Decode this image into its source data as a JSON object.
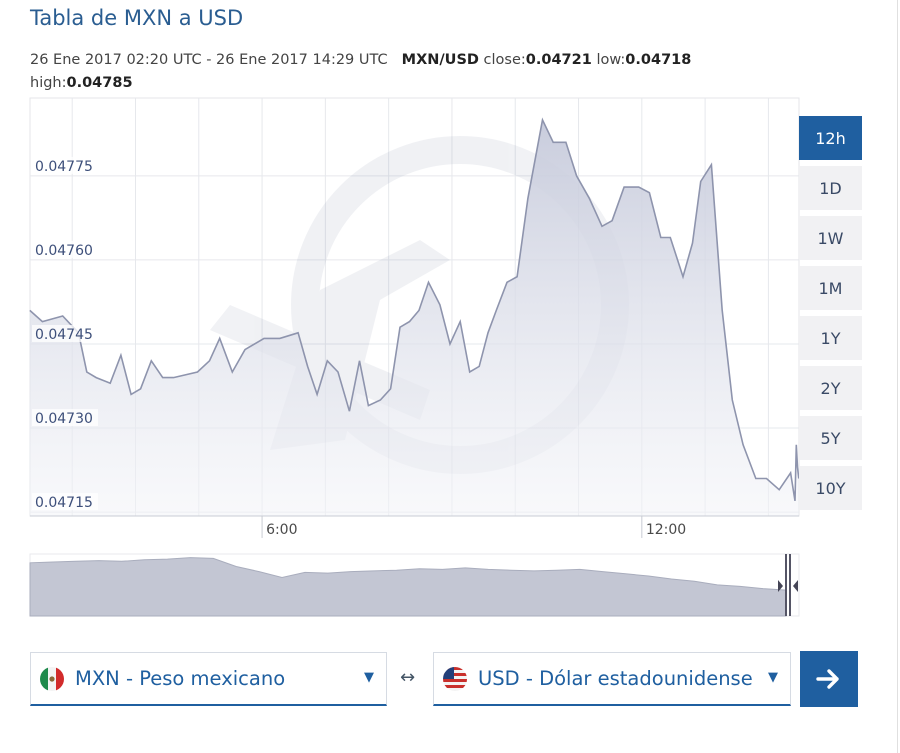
{
  "header": {
    "title": "Tabla de MXN a USD"
  },
  "info": {
    "time_range": "26 Ene 2017 02:20 UTC - 26 Ene 2017 14:29 UTC",
    "pair": "MXN/USD",
    "close_label": "close:",
    "close_value": "0.04721",
    "low_label": "low:",
    "low_value": "0.04718",
    "high_label": "high:",
    "high_value": "0.04785"
  },
  "range_buttons": [
    {
      "label": "12h",
      "active": true
    },
    {
      "label": "1D",
      "active": false
    },
    {
      "label": "1W",
      "active": false
    },
    {
      "label": "1M",
      "active": false
    },
    {
      "label": "1Y",
      "active": false
    },
    {
      "label": "2Y",
      "active": false
    },
    {
      "label": "5Y",
      "active": false
    },
    {
      "label": "10Y",
      "active": false
    }
  ],
  "converter": {
    "from": "MXN - Peso mexicano",
    "to": "USD - Dólar estadounidense",
    "swap_symbol": "↔",
    "caret": "▼"
  },
  "colors": {
    "accent": "#1f5fa0",
    "title": "#2a5d91",
    "area_fill_top": "#c6cadb",
    "area_line": "#8e94ad",
    "nav_fill": "#c3c6d3"
  },
  "chart_data": {
    "type": "area",
    "title": "",
    "xlabel": "",
    "ylabel": "",
    "x_range": [
      "02:20",
      "14:29"
    ],
    "x_ticks": [
      "6:00",
      "12:00"
    ],
    "x_tick_hours": [
      6,
      12
    ],
    "y_ticks": [
      "0.04715",
      "0.04730",
      "0.04745",
      "0.04760",
      "0.04775"
    ],
    "y_tick_values": [
      0.04715,
      0.0473,
      0.04745,
      0.0476,
      0.04775
    ],
    "ylim": [
      0.047143,
      0.047889
    ],
    "grid": true,
    "legend": "none",
    "x_hours": [
      2.33,
      2.53,
      2.85,
      3.1,
      3.23,
      3.38,
      3.6,
      3.77,
      3.93,
      4.08,
      4.25,
      4.43,
      4.6,
      4.98,
      5.17,
      5.33,
      5.53,
      5.73,
      6.03,
      6.28,
      6.57,
      6.72,
      6.87,
      7.03,
      7.2,
      7.38,
      7.54,
      7.68,
      7.87,
      8.03,
      8.18,
      8.33,
      8.48,
      8.63,
      8.81,
      8.97,
      9.13,
      9.28,
      9.43,
      9.57,
      9.7,
      9.87,
      10.03,
      10.2,
      10.43,
      10.6,
      10.8,
      10.97,
      11.17,
      11.37,
      11.53,
      11.72,
      11.95,
      12.12,
      12.3,
      12.45,
      12.65,
      12.8,
      12.93,
      13.1,
      13.27,
      13.43,
      13.6,
      13.8,
      13.97,
      14.17,
      14.35,
      14.42,
      14.44,
      14.46,
      14.48
    ],
    "values": [
      0.04751,
      0.04749,
      0.0475,
      0.04747,
      0.0474,
      0.04739,
      0.04738,
      0.04743,
      0.04736,
      0.04737,
      0.04742,
      0.04739,
      0.04739,
      0.0474,
      0.04742,
      0.04746,
      0.0474,
      0.04744,
      0.04746,
      0.04746,
      0.04747,
      0.04741,
      0.04736,
      0.04742,
      0.0474,
      0.04733,
      0.04742,
      0.04734,
      0.04735,
      0.04737,
      0.04748,
      0.04749,
      0.04751,
      0.04756,
      0.04752,
      0.04745,
      0.04749,
      0.0474,
      0.04741,
      0.04747,
      0.04751,
      0.04756,
      0.04757,
      0.04771,
      0.04785,
      0.04781,
      0.04781,
      0.04775,
      0.04771,
      0.04766,
      0.04767,
      0.04773,
      0.04773,
      0.04772,
      0.04764,
      0.04764,
      0.04757,
      0.04763,
      0.04774,
      0.04777,
      0.04751,
      0.04735,
      0.04727,
      0.04721,
      0.04721,
      0.04719,
      0.04722,
      0.04717,
      0.04727,
      0.04723,
      0.04721
    ],
    "navigator_values": [
      0.0477,
      0.04771,
      0.04772,
      0.04773,
      0.04772,
      0.04774,
      0.04775,
      0.04777,
      0.04776,
      0.04765,
      0.04758,
      0.0475,
      0.04757,
      0.04756,
      0.04758,
      0.04759,
      0.0476,
      0.04762,
      0.04761,
      0.04763,
      0.04761,
      0.0476,
      0.04759,
      0.0476,
      0.04761,
      0.04758,
      0.04755,
      0.04752,
      0.04748,
      0.04745,
      0.0474,
      0.04738,
      0.04735,
      0.04733
    ]
  }
}
